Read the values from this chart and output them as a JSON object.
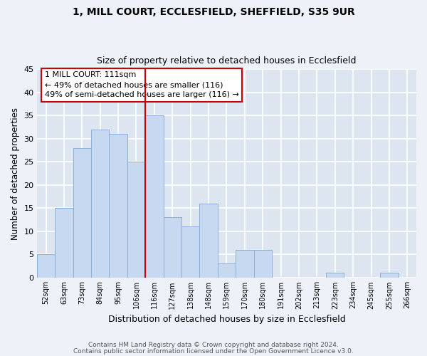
{
  "title1": "1, MILL COURT, ECCLESFIELD, SHEFFIELD, S35 9UR",
  "title2": "Size of property relative to detached houses in Ecclesfield",
  "xlabel": "Distribution of detached houses by size in Ecclesfield",
  "ylabel": "Number of detached properties",
  "bin_labels": [
    "52sqm",
    "63sqm",
    "73sqm",
    "84sqm",
    "95sqm",
    "106sqm",
    "116sqm",
    "127sqm",
    "138sqm",
    "148sqm",
    "159sqm",
    "170sqm",
    "180sqm",
    "191sqm",
    "202sqm",
    "213sqm",
    "223sqm",
    "234sqm",
    "245sqm",
    "255sqm",
    "266sqm"
  ],
  "bar_heights": [
    5,
    15,
    28,
    32,
    31,
    25,
    35,
    13,
    11,
    16,
    3,
    6,
    6,
    0,
    0,
    0,
    1,
    0,
    0,
    1,
    0
  ],
  "bar_color": "#c6d9f0",
  "bar_edge_color": "#8ab0d8",
  "vline_color": "#cc0000",
  "annotation_title": "1 MILL COURT: 111sqm",
  "annotation_line1": "← 49% of detached houses are smaller (116)",
  "annotation_line2": "49% of semi-detached houses are larger (116) →",
  "annotation_box_facecolor": "#ffffff",
  "annotation_box_edgecolor": "#cc0000",
  "ylim": [
    0,
    45
  ],
  "yticks": [
    0,
    5,
    10,
    15,
    20,
    25,
    30,
    35,
    40,
    45
  ],
  "footnote1": "Contains HM Land Registry data © Crown copyright and database right 2024.",
  "footnote2": "Contains public sector information licensed under the Open Government Licence v3.0.",
  "fig_bg_color": "#eef2f8",
  "plot_bg_color": "#dde5f0"
}
